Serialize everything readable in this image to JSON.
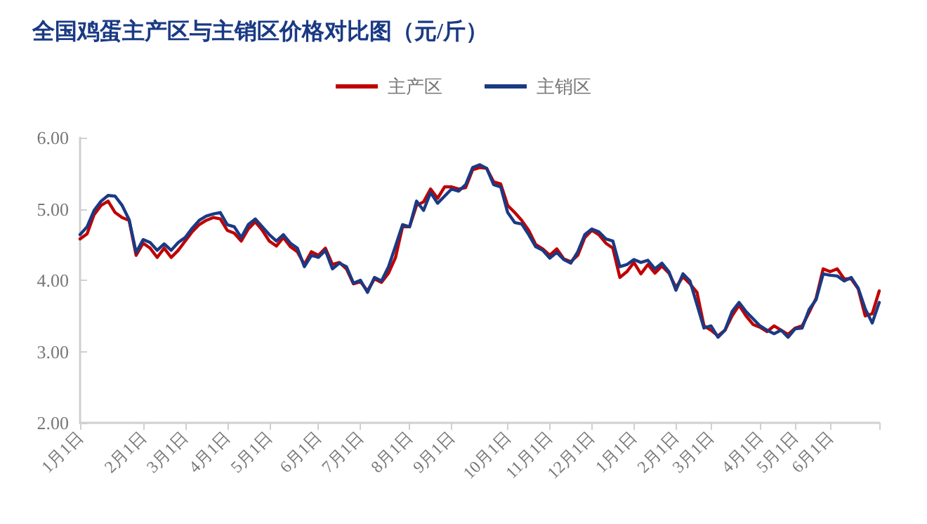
{
  "chart_data": {
    "type": "line",
    "title": "全国鸡蛋主产区与主销区价格对比图（元/斤）",
    "categories": [
      "1月1日",
      null,
      null,
      null,
      null,
      null,
      null,
      null,
      null,
      "2月1日",
      null,
      null,
      null,
      null,
      null,
      "3月1日",
      null,
      null,
      null,
      null,
      null,
      "4月1日",
      null,
      null,
      null,
      null,
      null,
      "5月1日",
      null,
      null,
      null,
      null,
      null,
      null,
      "6月1日",
      null,
      null,
      null,
      null,
      null,
      "7月1日",
      null,
      null,
      null,
      null,
      null,
      null,
      "8月1日",
      null,
      null,
      null,
      null,
      null,
      "9月1日",
      null,
      null,
      null,
      null,
      null,
      null,
      null,
      "10月1日",
      null,
      null,
      null,
      null,
      null,
      "11月1日",
      null,
      null,
      null,
      null,
      null,
      "12月1日",
      null,
      null,
      null,
      null,
      null,
      "1月1日",
      null,
      null,
      null,
      null,
      null,
      "2月1日",
      null,
      null,
      null,
      null,
      "3月1日",
      null,
      null,
      null,
      null,
      null,
      null,
      "4月1日",
      null,
      null,
      null,
      null,
      "5月1日",
      null,
      null,
      null,
      null,
      "6月1日",
      null,
      null,
      null,
      null,
      null,
      null,
      null
    ],
    "series": [
      {
        "name": "主产区",
        "color": "#c00000",
        "values": [
          4.58,
          4.65,
          4.92,
          5.05,
          5.11,
          4.95,
          4.88,
          4.84,
          4.35,
          4.52,
          4.45,
          4.32,
          4.45,
          4.32,
          4.42,
          4.55,
          4.68,
          4.78,
          4.84,
          4.88,
          4.86,
          4.7,
          4.66,
          4.55,
          4.72,
          4.82,
          4.7,
          4.55,
          4.48,
          4.6,
          4.47,
          4.4,
          4.22,
          4.4,
          4.35,
          4.45,
          4.22,
          4.25,
          4.16,
          3.95,
          3.98,
          3.85,
          4.02,
          3.97,
          4.1,
          4.32,
          4.75,
          4.75,
          5.05,
          5.1,
          5.28,
          5.15,
          5.31,
          5.31,
          5.28,
          5.3,
          5.55,
          5.58,
          5.57,
          5.38,
          5.35,
          5.05,
          4.95,
          4.84,
          4.7,
          4.5,
          4.44,
          4.35,
          4.44,
          4.3,
          4.26,
          4.35,
          4.6,
          4.7,
          4.64,
          4.52,
          4.45,
          4.04,
          4.12,
          4.25,
          4.09,
          4.22,
          4.1,
          4.2,
          4.1,
          3.9,
          4.05,
          3.95,
          3.83,
          3.36,
          3.3,
          3.22,
          3.3,
          3.5,
          3.65,
          3.5,
          3.38,
          3.34,
          3.28,
          3.36,
          3.3,
          3.24,
          3.33,
          3.36,
          3.55,
          3.75,
          4.16,
          4.12,
          4.16,
          4.02,
          4.02,
          3.88,
          3.5,
          3.53,
          3.85
        ]
      },
      {
        "name": "主销区",
        "color": "#1a3a84",
        "values": [
          4.64,
          4.75,
          4.98,
          5.11,
          5.19,
          5.18,
          5.05,
          4.85,
          4.39,
          4.57,
          4.53,
          4.42,
          4.51,
          4.42,
          4.53,
          4.6,
          4.73,
          4.84,
          4.9,
          4.93,
          4.95,
          4.78,
          4.75,
          4.6,
          4.78,
          4.86,
          4.75,
          4.64,
          4.55,
          4.64,
          4.52,
          4.45,
          4.19,
          4.35,
          4.32,
          4.42,
          4.16,
          4.24,
          4.19,
          3.96,
          4.0,
          3.83,
          4.04,
          3.99,
          4.19,
          4.48,
          4.78,
          4.75,
          5.11,
          4.98,
          5.23,
          5.08,
          5.18,
          5.28,
          5.25,
          5.34,
          5.58,
          5.62,
          5.57,
          5.34,
          5.31,
          4.95,
          4.81,
          4.79,
          4.64,
          4.47,
          4.42,
          4.31,
          4.39,
          4.29,
          4.24,
          4.4,
          4.64,
          4.72,
          4.68,
          4.58,
          4.55,
          4.19,
          4.22,
          4.29,
          4.25,
          4.28,
          4.16,
          4.24,
          4.12,
          3.86,
          4.09,
          3.99,
          3.66,
          3.33,
          3.36,
          3.2,
          3.3,
          3.56,
          3.69,
          3.56,
          3.46,
          3.36,
          3.3,
          3.25,
          3.3,
          3.2,
          3.32,
          3.33,
          3.59,
          3.73,
          4.09,
          4.07,
          4.06,
          3.99,
          4.04,
          3.89,
          3.6,
          3.4,
          3.69
        ]
      }
    ],
    "ylim": [
      2,
      6
    ],
    "yticks": [
      {
        "value": 2,
        "label": "2.00"
      },
      {
        "value": 3,
        "label": "3.00"
      },
      {
        "value": 4,
        "label": "4.00"
      },
      {
        "value": 5,
        "label": "5.00"
      },
      {
        "value": 6,
        "label": "6.00"
      }
    ],
    "grid": false,
    "legend": "top",
    "marker": "none",
    "line_style": "solid"
  }
}
